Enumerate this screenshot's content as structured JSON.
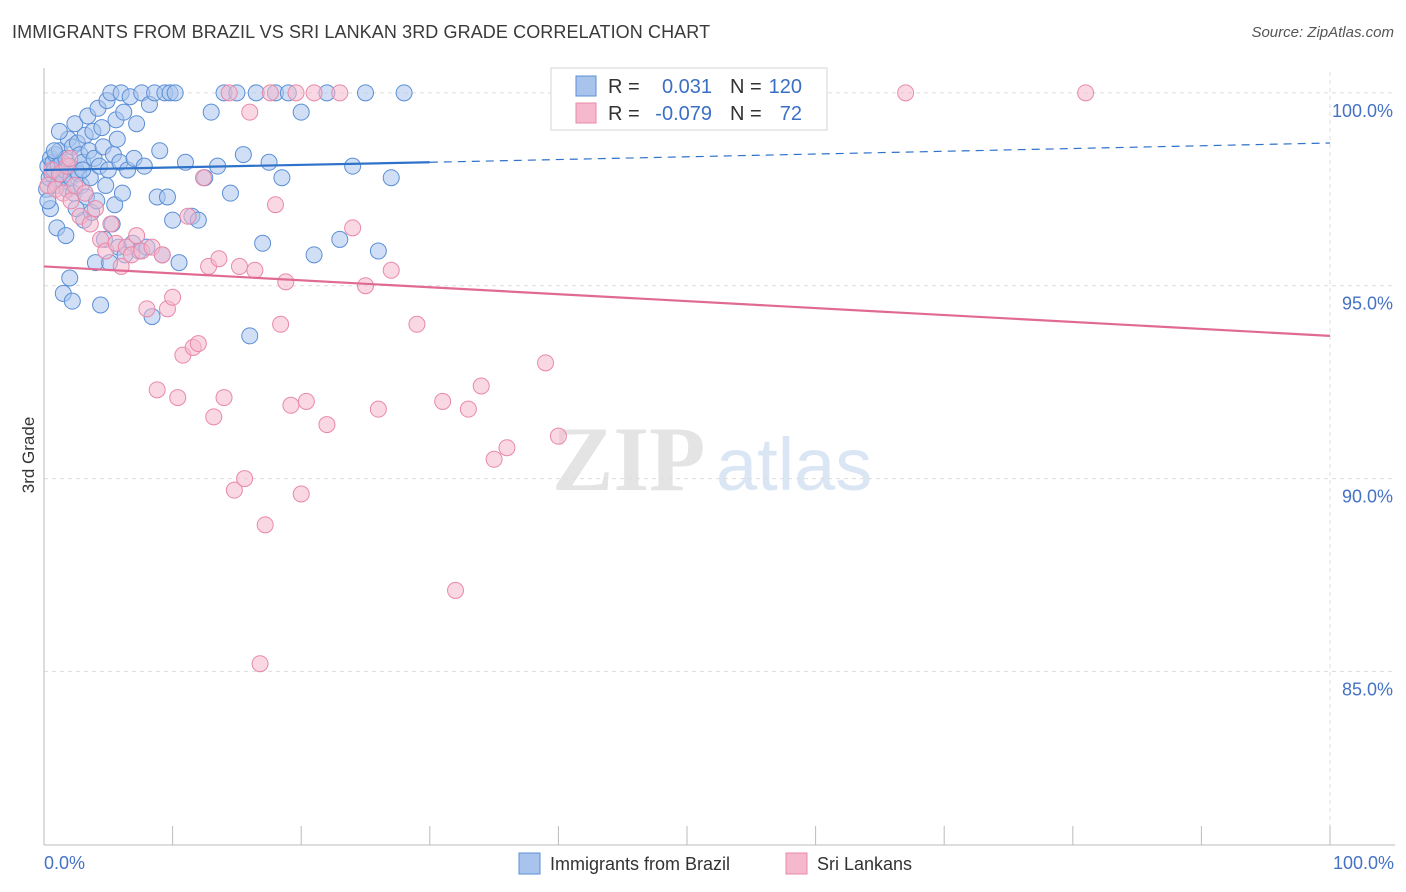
{
  "title": "IMMIGRANTS FROM BRAZIL VS SRI LANKAN 3RD GRADE CORRELATION CHART",
  "source": "Source: ZipAtlas.com",
  "watermark": {
    "zip": "ZIP",
    "atlas": "atlas"
  },
  "colors": {
    "blue_fill": "#a9c4ec",
    "blue_stroke": "#5b8fd6",
    "blue_line": "#2f72c9",
    "pink_fill": "#f6b8cc",
    "pink_stroke": "#e889a8",
    "pink_line": "#e06a93",
    "axis_text": "#4472c4",
    "grid": "#dcdcdc"
  },
  "legend": {
    "rows": [
      {
        "r_label": "R =",
        "r_value": "0.031",
        "n_label": "N =",
        "n_value": "120"
      },
      {
        "r_label": "R =",
        "r_value": "-0.079",
        "n_label": "N =",
        "n_value": "72"
      }
    ]
  },
  "chart_data": {
    "type": "scatter",
    "title": "IMMIGRANTS FROM BRAZIL VS SRI LANKAN 3RD GRADE CORRELATION CHART",
    "xlabel": "",
    "ylabel": "3rd Grade",
    "xlim": [
      0,
      100
    ],
    "ylim": [
      80.5,
      100.8
    ],
    "x_tick_labels": [
      "0.0%",
      "100.0%"
    ],
    "y_ticks": [
      100,
      95,
      90,
      85
    ],
    "y_tick_labels": [
      "100.0%",
      "95.0%",
      "90.0%",
      "85.0%"
    ],
    "grid": true,
    "series": [
      {
        "name": "Immigrants from Brazil",
        "r": 0.031,
        "n": 120,
        "trend": {
          "x0": 0,
          "y0": 98.0,
          "x1": 30,
          "y1": 98.2,
          "x_dashed_end": 100,
          "y_dashed_end": 98.7
        },
        "points": [
          [
            0.2,
            97.5
          ],
          [
            0.3,
            98.1
          ],
          [
            0.4,
            97.8
          ],
          [
            0.5,
            98.3
          ],
          [
            0.6,
            97.9
          ],
          [
            0.7,
            98.2
          ],
          [
            0.8,
            98.0
          ],
          [
            0.9,
            98.4
          ],
          [
            1.0,
            97.6
          ],
          [
            1.1,
            98.1
          ],
          [
            1.2,
            98.5
          ],
          [
            1.3,
            97.9
          ],
          [
            1.4,
            98.2
          ],
          [
            1.5,
            97.7
          ],
          [
            1.6,
            98.0
          ],
          [
            1.7,
            98.3
          ],
          [
            1.8,
            97.5
          ],
          [
            1.9,
            98.8
          ],
          [
            2.0,
            98.1
          ],
          [
            2.1,
            97.8
          ],
          [
            2.2,
            98.6
          ],
          [
            2.3,
            97.4
          ],
          [
            2.4,
            99.2
          ],
          [
            2.5,
            98.0
          ],
          [
            2.6,
            98.7
          ],
          [
            2.7,
            97.9
          ],
          [
            2.8,
            98.4
          ],
          [
            2.9,
            97.6
          ],
          [
            3.0,
            98.2
          ],
          [
            3.1,
            96.7
          ],
          [
            3.2,
            98.9
          ],
          [
            3.3,
            97.3
          ],
          [
            3.4,
            99.4
          ],
          [
            3.5,
            98.5
          ],
          [
            3.6,
            97.8
          ],
          [
            3.7,
            96.9
          ],
          [
            3.8,
            99.0
          ],
          [
            3.9,
            98.3
          ],
          [
            4.0,
            95.6
          ],
          [
            4.1,
            97.2
          ],
          [
            4.2,
            99.6
          ],
          [
            4.3,
            98.1
          ],
          [
            4.4,
            94.5
          ],
          [
            4.5,
            99.1
          ],
          [
            4.6,
            98.6
          ],
          [
            4.7,
            96.2
          ],
          [
            4.8,
            97.6
          ],
          [
            4.9,
            99.8
          ],
          [
            5.0,
            98.0
          ],
          [
            5.1,
            95.6
          ],
          [
            5.2,
            100.0
          ],
          [
            5.3,
            96.6
          ],
          [
            5.4,
            98.4
          ],
          [
            5.5,
            97.1
          ],
          [
            5.6,
            99.3
          ],
          [
            5.7,
            98.8
          ],
          [
            5.8,
            96.0
          ],
          [
            5.9,
            98.2
          ],
          [
            6.0,
            100.0
          ],
          [
            6.1,
            97.4
          ],
          [
            6.2,
            99.5
          ],
          [
            6.3,
            95.8
          ],
          [
            6.5,
            98.0
          ],
          [
            6.7,
            99.9
          ],
          [
            6.9,
            96.1
          ],
          [
            7.0,
            98.3
          ],
          [
            7.2,
            99.2
          ],
          [
            7.4,
            95.9
          ],
          [
            7.6,
            100.0
          ],
          [
            7.8,
            98.1
          ],
          [
            8.0,
            96.0
          ],
          [
            8.2,
            99.7
          ],
          [
            8.4,
            94.2
          ],
          [
            8.6,
            100.0
          ],
          [
            8.8,
            97.3
          ],
          [
            9.0,
            98.5
          ],
          [
            9.2,
            95.8
          ],
          [
            9.4,
            100.0
          ],
          [
            9.6,
            97.3
          ],
          [
            9.8,
            100.0
          ],
          [
            10.0,
            96.7
          ],
          [
            10.2,
            100.0
          ],
          [
            10.5,
            95.6
          ],
          [
            11.0,
            98.2
          ],
          [
            11.5,
            96.8
          ],
          [
            12.0,
            96.7
          ],
          [
            12.5,
            97.8
          ],
          [
            13.0,
            99.5
          ],
          [
            13.5,
            98.1
          ],
          [
            14.0,
            100.0
          ],
          [
            14.5,
            97.4
          ],
          [
            15.0,
            100.0
          ],
          [
            15.5,
            98.4
          ],
          [
            16.0,
            93.7
          ],
          [
            16.5,
            100.0
          ],
          [
            17.0,
            96.1
          ],
          [
            17.5,
            98.2
          ],
          [
            18.0,
            100.0
          ],
          [
            18.5,
            97.8
          ],
          [
            19.0,
            100.0
          ],
          [
            20.0,
            99.5
          ],
          [
            21.0,
            95.8
          ],
          [
            22.0,
            100.0
          ],
          [
            23.0,
            96.2
          ],
          [
            24.0,
            98.1
          ],
          [
            25.0,
            100.0
          ],
          [
            26.0,
            95.9
          ],
          [
            27.0,
            97.8
          ],
          [
            28.0,
            100.0
          ],
          [
            1.0,
            96.5
          ],
          [
            1.5,
            94.8
          ],
          [
            2.0,
            95.2
          ],
          [
            2.5,
            97.0
          ],
          [
            3.0,
            98.0
          ],
          [
            0.5,
            97.0
          ],
          [
            0.8,
            98.5
          ],
          [
            1.2,
            99.0
          ],
          [
            1.7,
            96.3
          ],
          [
            2.2,
            94.6
          ],
          [
            0.3,
            97.2
          ]
        ]
      },
      {
        "name": "Sri Lankans",
        "r": -0.079,
        "n": 72,
        "trend": {
          "x0": 0,
          "y0": 95.5,
          "x1": 100,
          "y1": 93.7
        },
        "points": [
          [
            0.3,
            97.6
          ],
          [
            0.6,
            98.0
          ],
          [
            0.9,
            97.5
          ],
          [
            1.2,
            97.9
          ],
          [
            1.5,
            97.4
          ],
          [
            1.8,
            98.1
          ],
          [
            2.1,
            97.2
          ],
          [
            2.4,
            97.6
          ],
          [
            2.8,
            96.8
          ],
          [
            3.2,
            97.4
          ],
          [
            3.6,
            96.6
          ],
          [
            4.0,
            97.0
          ],
          [
            4.4,
            96.2
          ],
          [
            4.8,
            95.9
          ],
          [
            5.2,
            96.6
          ],
          [
            5.6,
            96.1
          ],
          [
            6.0,
            95.5
          ],
          [
            6.4,
            96.0
          ],
          [
            6.8,
            95.8
          ],
          [
            7.2,
            96.3
          ],
          [
            7.6,
            95.9
          ],
          [
            8.0,
            94.4
          ],
          [
            8.4,
            96.0
          ],
          [
            8.8,
            92.3
          ],
          [
            9.2,
            95.8
          ],
          [
            9.6,
            94.4
          ],
          [
            10.0,
            94.7
          ],
          [
            10.4,
            92.1
          ],
          [
            10.8,
            93.2
          ],
          [
            11.2,
            96.8
          ],
          [
            11.6,
            93.4
          ],
          [
            12.0,
            93.5
          ],
          [
            12.4,
            97.8
          ],
          [
            12.8,
            95.5
          ],
          [
            13.2,
            91.6
          ],
          [
            13.6,
            95.7
          ],
          [
            14.0,
            92.1
          ],
          [
            14.4,
            100.0
          ],
          [
            14.8,
            89.7
          ],
          [
            15.2,
            95.5
          ],
          [
            15.6,
            90.0
          ],
          [
            16.0,
            99.5
          ],
          [
            16.4,
            95.4
          ],
          [
            16.8,
            85.2
          ],
          [
            17.2,
            88.8
          ],
          [
            17.6,
            100.0
          ],
          [
            18.0,
            97.1
          ],
          [
            18.4,
            94.0
          ],
          [
            18.8,
            95.1
          ],
          [
            19.2,
            91.9
          ],
          [
            19.6,
            100.0
          ],
          [
            20.0,
            89.6
          ],
          [
            20.4,
            92.0
          ],
          [
            21.0,
            100.0
          ],
          [
            22.0,
            91.4
          ],
          [
            23.0,
            100.0
          ],
          [
            24.0,
            96.5
          ],
          [
            25.0,
            95.0
          ],
          [
            26.0,
            91.8
          ],
          [
            27.0,
            95.4
          ],
          [
            29.0,
            94.0
          ],
          [
            31.0,
            92.0
          ],
          [
            32.0,
            87.1
          ],
          [
            33.0,
            91.8
          ],
          [
            34.0,
            92.4
          ],
          [
            35.0,
            90.5
          ],
          [
            36.0,
            90.8
          ],
          [
            39.0,
            93.0
          ],
          [
            40.0,
            91.1
          ],
          [
            67.0,
            100.0
          ],
          [
            81.0,
            100.0
          ],
          [
            2.0,
            98.3
          ]
        ]
      }
    ]
  },
  "bottom_legend": [
    {
      "label": "Immigrants from Brazil"
    },
    {
      "label": "Sri Lankans"
    }
  ]
}
